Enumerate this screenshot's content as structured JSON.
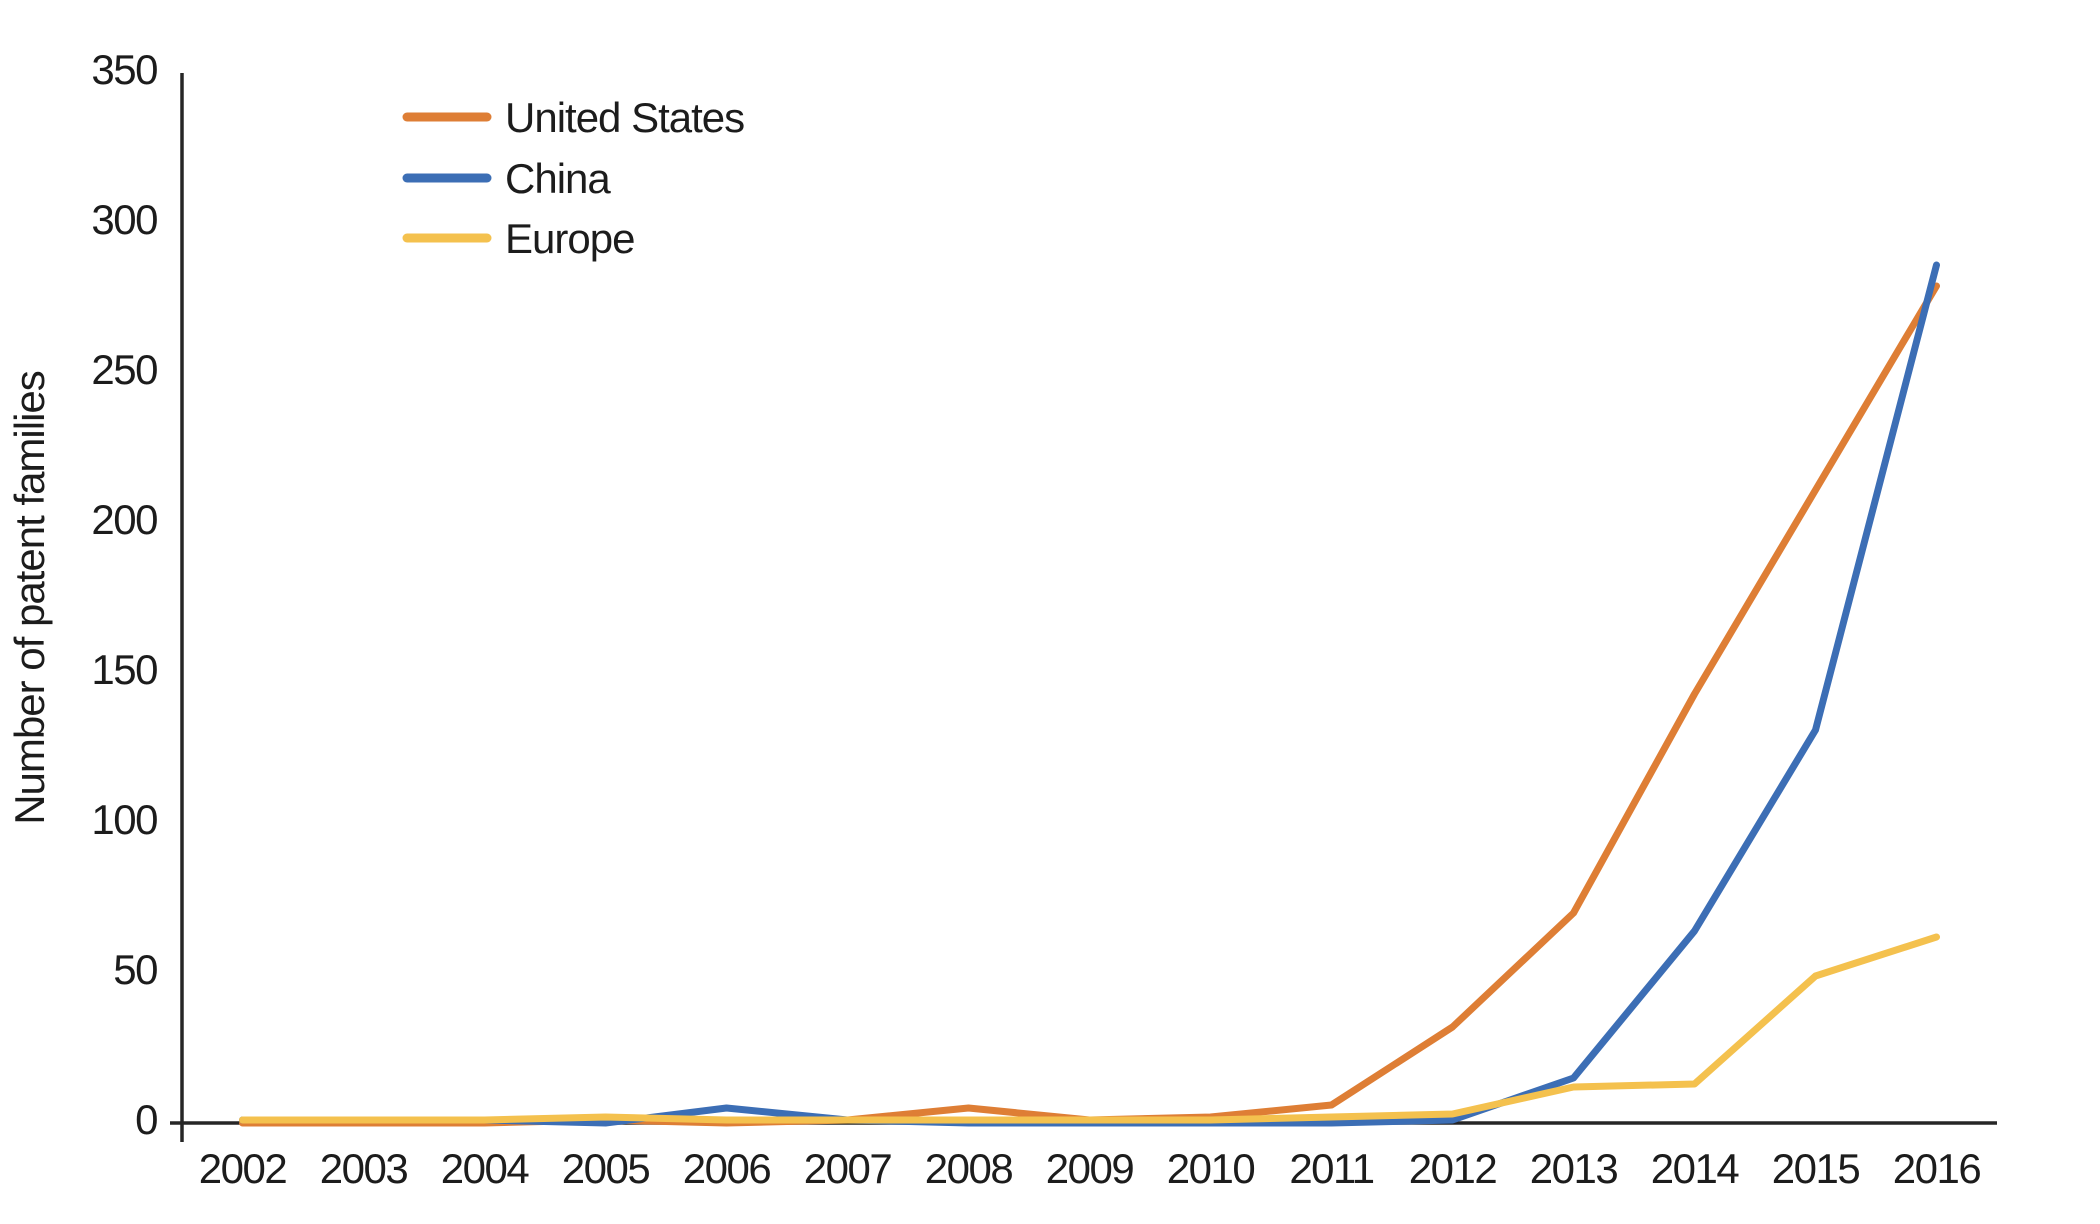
{
  "chart_data": {
    "type": "line",
    "title": "",
    "ylabel": "Number of patent families",
    "xlabel": "",
    "x": [
      "2002",
      "2003",
      "2004",
      "2005",
      "2006",
      "2007",
      "2008",
      "2009",
      "2010",
      "2011",
      "2012",
      "2013",
      "2014",
      "2015",
      "2016"
    ],
    "series": [
      {
        "name": "United States",
        "color": "#DE7E35",
        "values": [
          0,
          0,
          0,
          1,
          0,
          1,
          5,
          1,
          2,
          6,
          32,
          70,
          143,
          211,
          279
        ]
      },
      {
        "name": "China",
        "color": "#3C6EB5",
        "values": [
          1,
          1,
          1,
          0,
          5,
          1,
          0,
          0,
          0,
          0,
          1,
          15,
          64,
          131,
          286
        ]
      },
      {
        "name": "Europe",
        "color": "#F4C14E",
        "values": [
          1,
          1,
          1,
          2,
          1,
          1,
          1,
          1,
          1,
          2,
          3,
          12,
          13,
          49,
          62
        ]
      }
    ],
    "ylim": [
      0,
      350
    ],
    "y_ticks": [
      0,
      50,
      100,
      150,
      200,
      250,
      300,
      350
    ],
    "grid": false,
    "legend_position": "top-left-inside",
    "axis_color": "#262626",
    "text_color": "#1c1c1c"
  }
}
